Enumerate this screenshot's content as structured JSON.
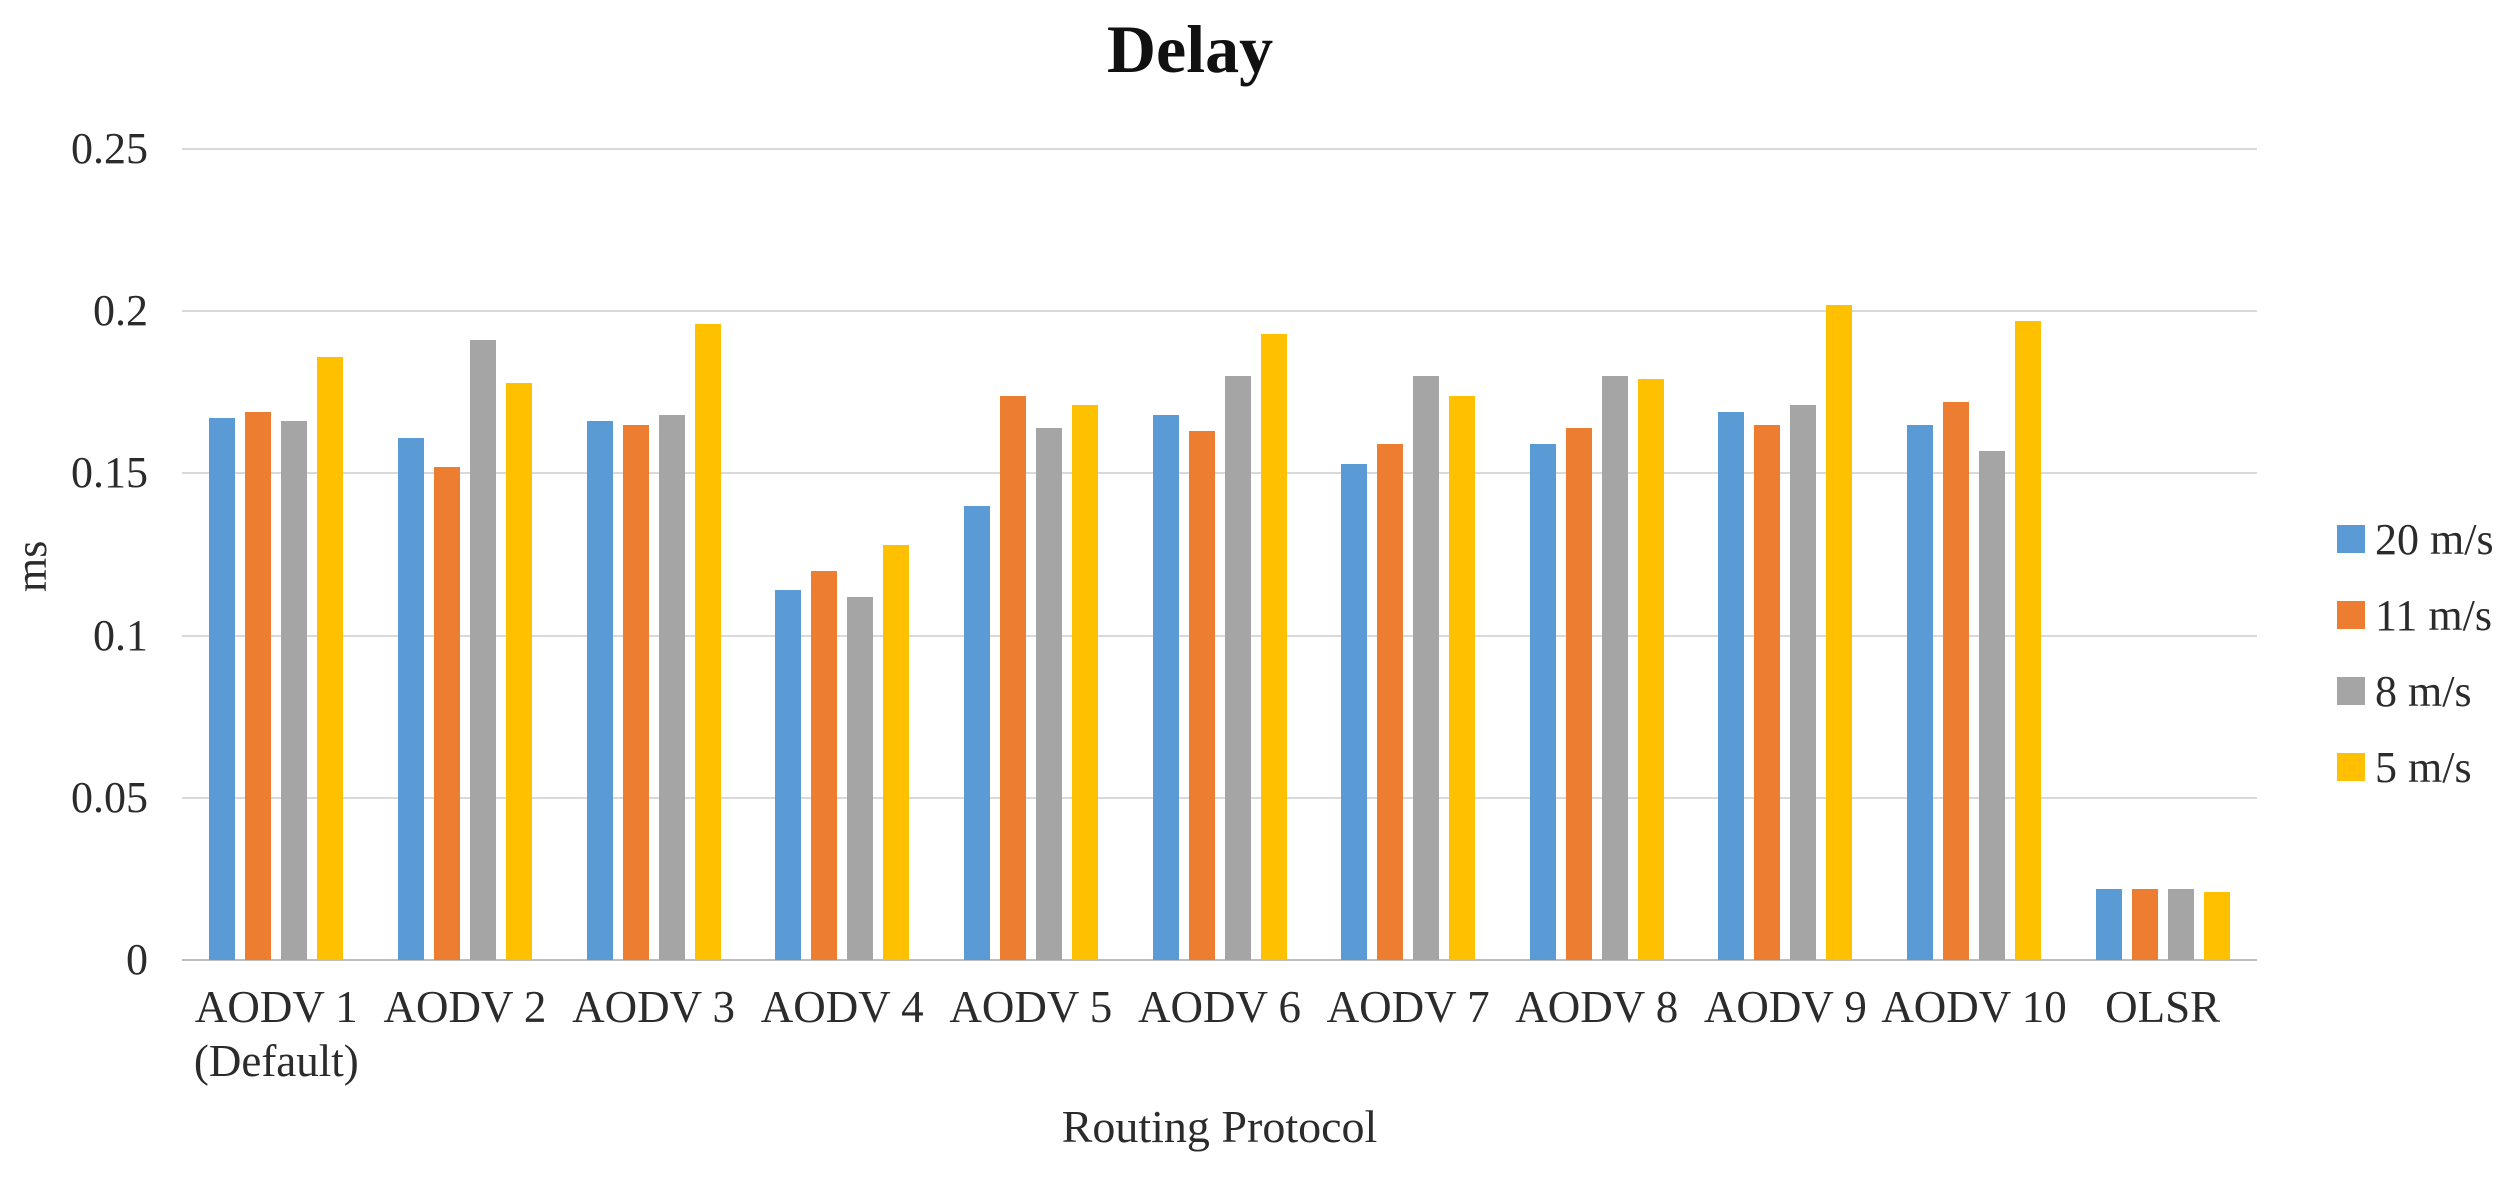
{
  "title": "Delay",
  "y_axis": {
    "title": "ms"
  },
  "x_axis": {
    "title": "Routing Protocol"
  },
  "chart_data": {
    "type": "bar",
    "title": "Delay",
    "xlabel": "Routing Protocol",
    "ylabel": "ms",
    "ylim": [
      0,
      0.25
    ],
    "y_ticks": [
      {
        "value": 0.25,
        "label": "0.25"
      },
      {
        "value": 0.2,
        "label": "0.2"
      },
      {
        "value": 0.15,
        "label": "0.15"
      },
      {
        "value": 0.1,
        "label": "0.1"
      },
      {
        "value": 0.05,
        "label": "0.05"
      },
      {
        "value": 0,
        "label": "0"
      }
    ],
    "grid": true,
    "legend_position": "right",
    "categories": [
      "AODV 1 (Default)",
      "AODV 2",
      "AODV 3",
      "AODV 4",
      "AODV 5",
      "AODV 6",
      "AODV 7",
      "AODV 8",
      "AODV 9",
      "AODV 10",
      "OLSR"
    ],
    "category_label_lines": [
      [
        "AODV 1",
        "(Default)"
      ],
      [
        "AODV 2"
      ],
      [
        "AODV 3"
      ],
      [
        "AODV 4"
      ],
      [
        "AODV 5"
      ],
      [
        "AODV 6"
      ],
      [
        "AODV 7"
      ],
      [
        "AODV 8"
      ],
      [
        "AODV 9"
      ],
      [
        "AODV 10"
      ],
      [
        "OLSR"
      ]
    ],
    "series": [
      {
        "name": "20 m/s",
        "color": "#5B9BD5",
        "values": [
          0.167,
          0.161,
          0.166,
          0.114,
          0.14,
          0.168,
          0.153,
          0.159,
          0.169,
          0.165,
          0.022
        ]
      },
      {
        "name": "11 m/s",
        "color": "#ED7D31",
        "values": [
          0.169,
          0.152,
          0.165,
          0.12,
          0.174,
          0.163,
          0.159,
          0.164,
          0.165,
          0.172,
          0.022
        ]
      },
      {
        "name": "8 m/s",
        "color": "#A5A5A5",
        "values": [
          0.166,
          0.191,
          0.168,
          0.112,
          0.164,
          0.18,
          0.18,
          0.18,
          0.171,
          0.157,
          0.022
        ]
      },
      {
        "name": "5 m/s",
        "color": "#FFC000",
        "values": [
          0.186,
          0.178,
          0.196,
          0.128,
          0.171,
          0.193,
          0.174,
          0.179,
          0.202,
          0.197,
          0.021
        ]
      }
    ]
  }
}
